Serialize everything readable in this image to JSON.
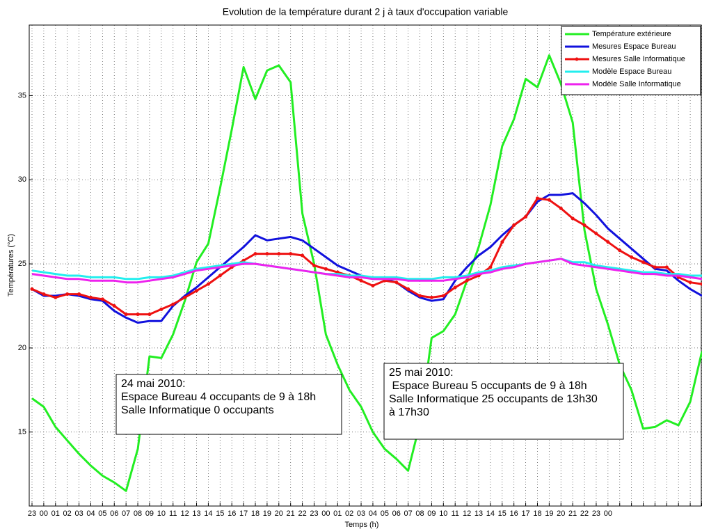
{
  "chart_data": {
    "type": "line",
    "title": "Evolution de la température durant 2 j à taux d'occupation variable",
    "x_label": "Temps (h)",
    "y_label": "Températures (°C)",
    "categories": [
      "23",
      "00",
      "01",
      "02",
      "03",
      "04",
      "05",
      "06",
      "07",
      "08",
      "09",
      "10",
      "11",
      "12",
      "13",
      "14",
      "15",
      "16",
      "17",
      "18",
      "19",
      "20",
      "21",
      "22",
      "23",
      "00",
      "01",
      "02",
      "03",
      "04",
      "05",
      "06",
      "07",
      "08",
      "09",
      "10",
      "11",
      "12",
      "13",
      "14",
      "15",
      "16",
      "17",
      "18",
      "19",
      "20",
      "21",
      "22",
      "23",
      "00",
      null,
      null,
      null,
      null,
      null,
      null,
      null,
      null
    ],
    "ylim": [
      10.6,
      39.2
    ],
    "yticks": [
      15,
      20,
      25,
      30,
      35
    ],
    "grid": true,
    "legend": "upper right",
    "series": [
      {
        "name": "Température extérieure",
        "color": "#22ee22",
        "marker": false,
        "values": [
          17.0,
          16.5,
          15.3,
          14.5,
          13.7,
          13.0,
          12.4,
          12.0,
          11.5,
          14.0,
          19.5,
          19.4,
          20.8,
          22.8,
          25.1,
          26.2,
          29.5,
          33.0,
          36.7,
          34.8,
          36.5,
          36.8,
          35.8,
          28.0,
          25.0,
          20.8,
          19.0,
          17.5,
          16.5,
          15.0,
          14.0,
          13.4,
          12.7,
          15.5,
          20.6,
          21.0,
          22.0,
          24.0,
          26.0,
          28.5,
          32.0,
          33.6,
          36.0,
          35.5,
          37.4,
          35.7,
          33.4,
          27.0,
          23.5,
          21.4,
          19.0,
          17.5,
          15.2,
          15.3,
          15.7,
          15.4,
          16.8,
          19.8
        ]
      },
      {
        "name": "Mesures Espace Bureau",
        "color": "#1111dd",
        "marker": false,
        "values": [
          23.5,
          23.1,
          23.1,
          23.2,
          23.1,
          22.9,
          22.8,
          22.2,
          21.8,
          21.5,
          21.6,
          21.6,
          22.5,
          23.1,
          23.6,
          24.2,
          24.8,
          25.4,
          26.0,
          26.7,
          26.4,
          26.5,
          26.6,
          26.4,
          25.9,
          25.4,
          24.9,
          24.6,
          24.3,
          24.1,
          24.1,
          23.9,
          23.4,
          23.0,
          22.8,
          22.9,
          24.0,
          24.8,
          25.5,
          26.0,
          26.7,
          27.3,
          27.8,
          28.7,
          29.1,
          29.1,
          29.2,
          28.6,
          27.9,
          27.1,
          26.5,
          25.9,
          25.3,
          24.7,
          24.6,
          24.0,
          23.5,
          23.1
        ]
      },
      {
        "name": "Mesures Salle Informatique",
        "color": "#ee1111",
        "marker": true,
        "values": [
          23.5,
          23.2,
          23.0,
          23.2,
          23.2,
          23.0,
          22.9,
          22.5,
          22.0,
          22.0,
          22.0,
          22.3,
          22.6,
          23.0,
          23.4,
          23.8,
          24.3,
          24.8,
          25.2,
          25.6,
          25.6,
          25.6,
          25.6,
          25.5,
          24.9,
          24.7,
          24.5,
          24.3,
          24.0,
          23.7,
          24.0,
          23.9,
          23.5,
          23.1,
          23.0,
          23.1,
          23.6,
          24.0,
          24.3,
          24.8,
          26.3,
          27.3,
          27.8,
          28.9,
          28.8,
          28.3,
          27.7,
          27.3,
          26.8,
          26.3,
          25.8,
          25.4,
          25.1,
          24.8,
          24.8,
          24.2,
          23.9,
          23.8
        ]
      },
      {
        "name": "Modèle Espace Bureau",
        "color": "#22eeee",
        "marker": false,
        "values": [
          24.6,
          24.5,
          24.4,
          24.3,
          24.3,
          24.2,
          24.2,
          24.2,
          24.1,
          24.1,
          24.2,
          24.2,
          24.3,
          24.5,
          24.7,
          24.8,
          24.9,
          25.0,
          25.1,
          25.0,
          24.9,
          24.8,
          24.7,
          24.6,
          24.5,
          24.4,
          24.4,
          24.3,
          24.3,
          24.2,
          24.2,
          24.2,
          24.1,
          24.1,
          24.1,
          24.2,
          24.2,
          24.3,
          24.5,
          24.6,
          24.8,
          24.9,
          25.0,
          25.1,
          25.2,
          25.3,
          25.1,
          25.1,
          24.9,
          24.8,
          24.7,
          24.6,
          24.5,
          24.5,
          24.4,
          24.4,
          24.3,
          24.3
        ]
      },
      {
        "name": "Modèle Salle Informatique",
        "color": "#ee22ee",
        "marker": false,
        "values": [
          24.4,
          24.3,
          24.2,
          24.1,
          24.1,
          24.0,
          24.0,
          24.0,
          23.9,
          23.9,
          24.0,
          24.1,
          24.2,
          24.4,
          24.6,
          24.7,
          24.8,
          24.9,
          25.0,
          25.0,
          24.9,
          24.8,
          24.7,
          24.6,
          24.5,
          24.4,
          24.3,
          24.2,
          24.2,
          24.1,
          24.1,
          24.1,
          24.0,
          24.0,
          24.0,
          24.0,
          24.1,
          24.2,
          24.4,
          24.5,
          24.7,
          24.8,
          25.0,
          25.1,
          25.2,
          25.3,
          25.0,
          24.9,
          24.8,
          24.7,
          24.6,
          24.5,
          24.4,
          24.4,
          24.3,
          24.3,
          24.2,
          24.1
        ]
      }
    ],
    "annotations": [
      {
        "lines": [
          "24 mai 2010:",
          "Espace Bureau 4 occupants de 9 à 18h",
          "Salle Informatique 0 occupants"
        ]
      },
      {
        "lines": [
          "25 mai 2010:",
          " Espace Bureau 5 occupants de 9 à 18h",
          "Salle Informatique 25 occupants de 13h30",
          "à 17h30"
        ]
      }
    ]
  }
}
